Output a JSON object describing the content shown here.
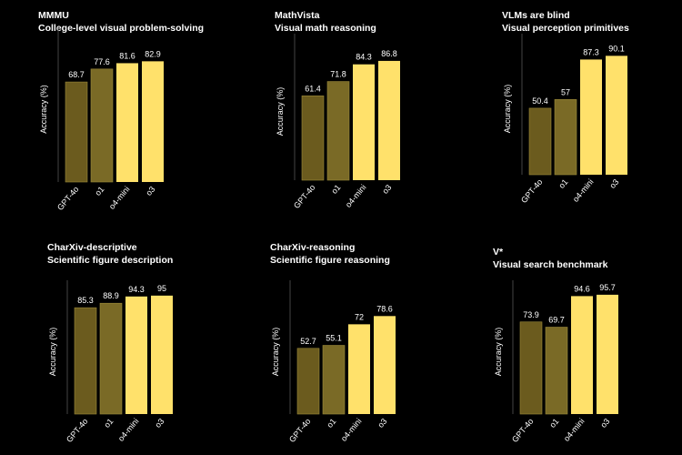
{
  "chart_data": [
    {
      "type": "bar",
      "title": "MMMU",
      "subtitle": "College-level visual problem-solving",
      "y_label": "Accuracy (%)",
      "categories": [
        "GPT-4o",
        "o1",
        "o4-mini",
        "o3"
      ],
      "values": [
        68.7,
        77.6,
        81.6,
        82.9
      ],
      "colors": [
        "#6b5b1e",
        "#7a6a26",
        "#ffe16b",
        "#ffe16b"
      ],
      "ylim": [
        0,
        100
      ]
    },
    {
      "type": "bar",
      "title": "MathVista",
      "subtitle": "Visual math reasoning",
      "y_label": "Accuracy (%)",
      "categories": [
        "GPT-4o",
        "o1",
        "o4-mini",
        "o3"
      ],
      "values": [
        61.4,
        71.8,
        84.3,
        86.8
      ],
      "colors": [
        "#6b5b1e",
        "#7a6a26",
        "#ffe16b",
        "#ffe16b"
      ],
      "ylim": [
        0,
        100
      ]
    },
    {
      "type": "bar",
      "title": "VLMs are blind",
      "subtitle": "Visual perception primitives",
      "y_label": "Accuracy (%)",
      "categories": [
        "GPT-4o",
        "o1",
        "o4-mini",
        "o3"
      ],
      "values": [
        50.4,
        57,
        87.3,
        90.1
      ],
      "colors": [
        "#6b5b1e",
        "#7a6a26",
        "#ffe16b",
        "#ffe16b"
      ],
      "ylim": [
        0,
        100
      ]
    },
    {
      "type": "bar",
      "title": "CharXiv-descriptive",
      "subtitle": "Scientific figure description",
      "y_label": "Accuracy (%)",
      "categories": [
        "GPT-4o",
        "o1",
        "o4-mini",
        "o3"
      ],
      "values": [
        85.3,
        88.9,
        94.3,
        95
      ],
      "colors": [
        "#6b5b1e",
        "#7a6a26",
        "#ffe16b",
        "#ffe16b"
      ],
      "ylim": [
        0,
        100
      ]
    },
    {
      "type": "bar",
      "title": "CharXiv-reasoning",
      "subtitle": "Scientific figure reasoning",
      "y_label": "Accuracy (%)",
      "categories": [
        "GPT-4o",
        "o1",
        "o4-mini",
        "o3"
      ],
      "values": [
        52.7,
        55.1,
        72,
        78.6
      ],
      "colors": [
        "#6b5b1e",
        "#7a6a26",
        "#ffe16b",
        "#ffe16b"
      ],
      "ylim": [
        0,
        100
      ]
    },
    {
      "type": "bar",
      "title": "V*",
      "subtitle": "Visual search benchmark",
      "y_label": "Accuracy (%)",
      "categories": [
        "GPT-4o",
        "o1",
        "o4-mini",
        "o3"
      ],
      "values": [
        73.9,
        69.7,
        94.6,
        95.7
      ],
      "colors": [
        "#6b5b1e",
        "#7a6a26",
        "#ffe16b",
        "#ffe16b"
      ],
      "ylim": [
        0,
        100
      ]
    }
  ]
}
